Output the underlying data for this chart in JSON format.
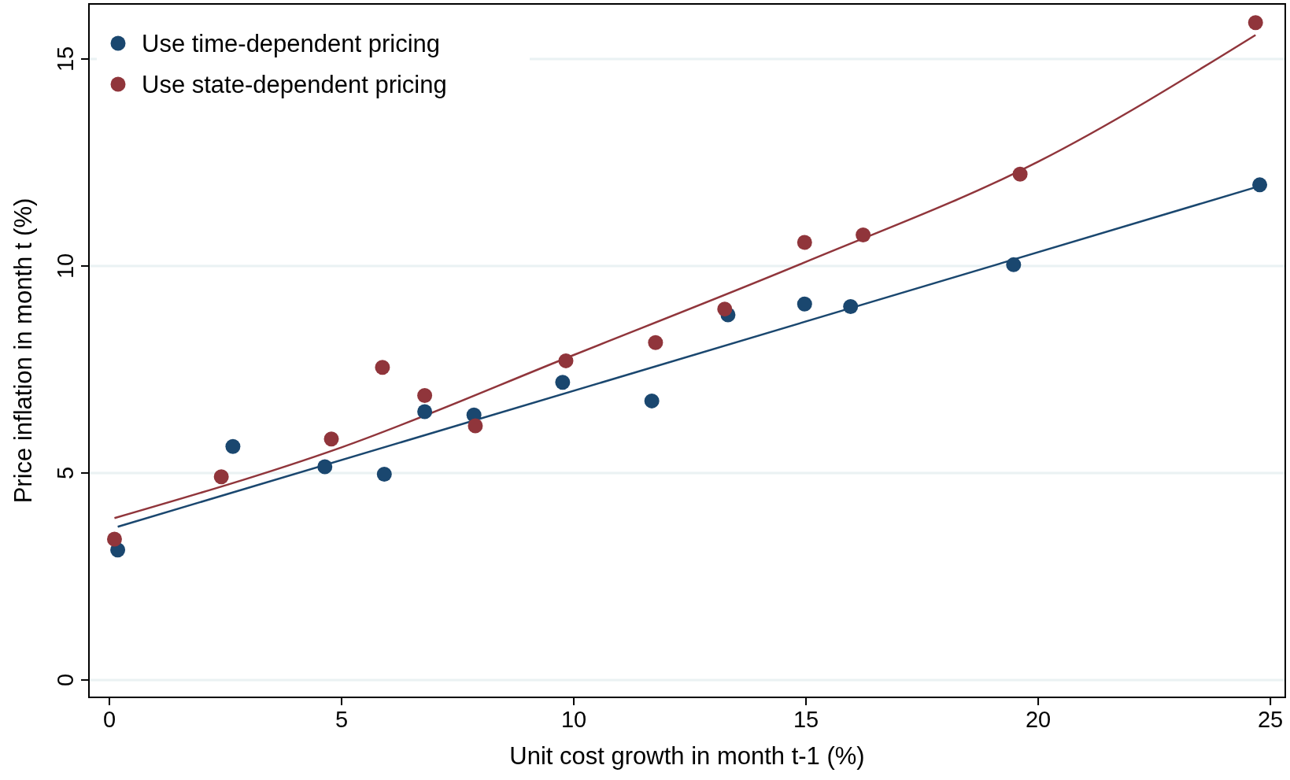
{
  "chart_data": {
    "type": "scatter",
    "xlabel": "Unit cost growth in month t-1 (%)",
    "ylabel": "Price inflation in month t (%)",
    "xlim": [
      -0.44,
      25.32
    ],
    "ylim": [
      -0.42,
      16.33
    ],
    "xticks": [
      0,
      5,
      10,
      15,
      20,
      25
    ],
    "yticks": [
      0,
      5,
      10,
      15
    ],
    "grid": "y",
    "legend": "top left",
    "marker": "circle",
    "series": [
      {
        "name": "Use time-dependent pricing",
        "color": "#1a476f",
        "x": [
          0.18,
          2.66,
          4.64,
          5.92,
          6.79,
          7.85,
          9.76,
          11.68,
          13.32,
          14.97,
          15.96,
          19.47,
          24.77
        ],
        "values": [
          3.14,
          5.64,
          5.15,
          4.97,
          6.48,
          6.4,
          7.19,
          6.74,
          8.82,
          9.08,
          9.02,
          10.03,
          11.96
        ]
      },
      {
        "name": "Use state-dependent pricing",
        "color": "#90353b",
        "x": [
          0.11,
          2.41,
          4.78,
          5.88,
          6.79,
          7.88,
          9.83,
          11.76,
          13.25,
          14.97,
          16.23,
          19.61,
          24.68
        ],
        "values": [
          3.4,
          4.91,
          5.82,
          7.55,
          6.87,
          6.14,
          7.71,
          8.15,
          8.96,
          10.57,
          10.75,
          12.22,
          15.88
        ]
      },
      {
        "type": "line",
        "marker": "none",
        "color": "#1a476f",
        "x": [
          0.18,
          24.77
        ],
        "values": [
          3.7,
          11.93
        ]
      },
      {
        "type": "line",
        "marker": "none",
        "color": "#90353b",
        "x": [
          0.11,
          5,
          10,
          15,
          20,
          24.68
        ],
        "values": [
          3.91,
          5.62,
          7.85,
          10.1,
          12.52,
          15.58
        ]
      }
    ]
  }
}
